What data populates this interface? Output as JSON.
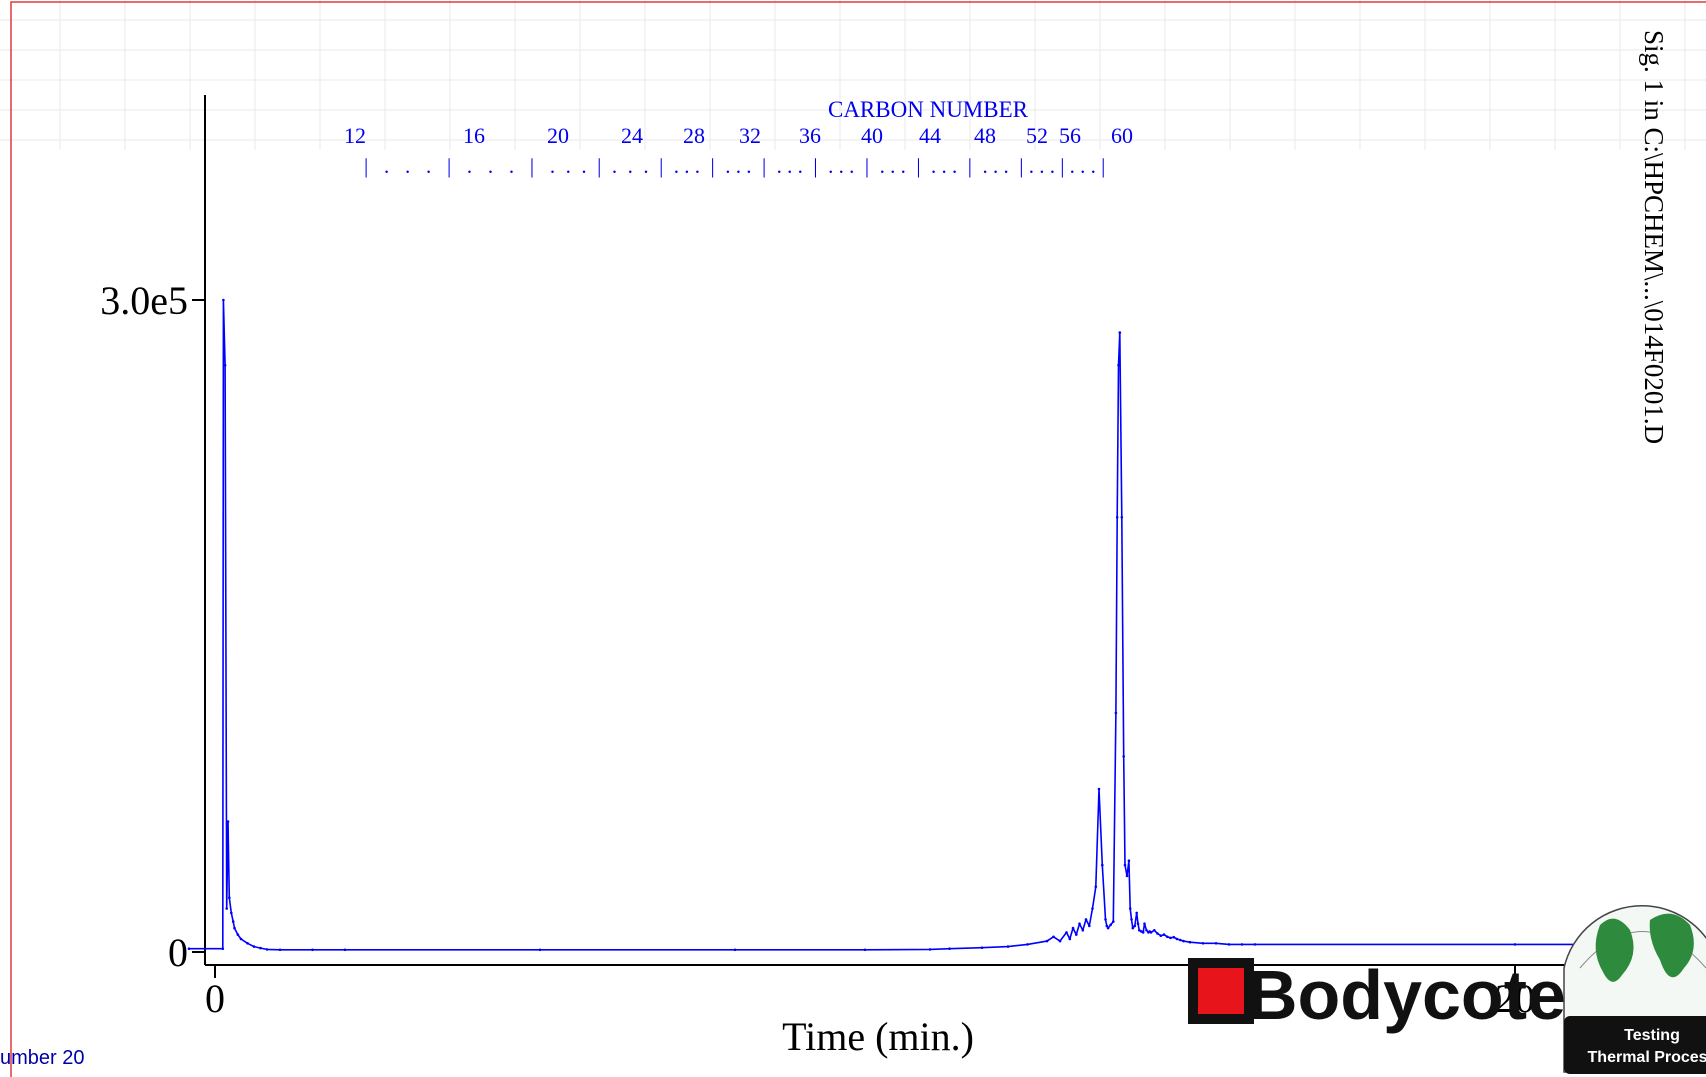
{
  "chart_data": {
    "type": "line",
    "xlabel": "Time (min.)",
    "ylabel": "",
    "x_ticks": [
      {
        "value": 0,
        "label": "0"
      },
      {
        "value": 20,
        "label": "20"
      }
    ],
    "y_ticks": [
      {
        "value": 0,
        "label": "0"
      },
      {
        "value": 300000,
        "label": "3.0e5"
      }
    ],
    "xlim": [
      0,
      22.5
    ],
    "ylim": [
      0,
      302000
    ],
    "series": [
      {
        "color": "#0000ff",
        "x": [
          -0.4,
          0.12,
          0.13,
          0.155,
          0.18,
          0.2,
          0.22,
          0.25,
          0.28,
          0.3,
          0.35,
          0.4,
          0.5,
          0.6,
          0.7,
          0.8,
          1.0,
          1.5,
          2.0,
          5.0,
          8.0,
          10.0,
          11.0,
          11.3,
          11.8,
          12.2,
          12.5,
          12.8,
          12.9,
          13.0,
          13.1,
          13.15,
          13.2,
          13.25,
          13.3,
          13.35,
          13.4,
          13.45,
          13.5,
          13.55,
          13.6,
          13.65,
          13.7,
          13.72,
          13.74,
          13.78,
          13.82,
          13.86,
          13.88,
          13.9,
          13.92,
          13.95,
          13.98,
          14.0,
          14.03,
          14.06,
          14.08,
          14.1,
          14.12,
          14.15,
          14.18,
          14.2,
          14.22,
          14.25,
          14.28,
          14.3,
          14.33,
          14.36,
          14.38,
          14.4,
          14.45,
          14.5,
          14.55,
          14.6,
          14.65,
          14.7,
          14.75,
          14.8,
          14.85,
          14.9,
          15.0,
          15.2,
          15.4,
          15.6,
          15.8,
          16.0,
          20.0,
          22.5
        ],
        "y": [
          1500,
          1500,
          300000,
          270000,
          20000,
          60000,
          25000,
          18000,
          14000,
          11000,
          8000,
          6000,
          4000,
          2500,
          1800,
          1200,
          1000,
          1000,
          1000,
          1000,
          1000,
          1000,
          1200,
          1500,
          2000,
          2500,
          3500,
          5000,
          7000,
          5000,
          9000,
          6000,
          11000,
          8000,
          13000,
          10000,
          15000,
          12000,
          20000,
          30000,
          75000,
          40000,
          15000,
          12000,
          11000,
          12500,
          14000,
          110000,
          200000,
          270000,
          285000,
          200000,
          90000,
          40000,
          35000,
          42000,
          20000,
          15000,
          11000,
          12000,
          18000,
          13000,
          10000,
          9500,
          9000,
          13000,
          10000,
          9000,
          9500,
          9000,
          10000,
          8500,
          7500,
          8000,
          7000,
          6500,
          6800,
          6000,
          5500,
          5000,
          4500,
          4000,
          4000,
          3500,
          3500,
          3500,
          3500,
          3500
        ]
      }
    ],
    "carbon_axis": {
      "title": "CARBON NUMBER",
      "labeled_numbers": [
        12,
        16,
        20,
        24,
        28,
        32,
        36,
        40,
        44,
        48,
        52,
        56,
        60
      ],
      "tick_marks": "|   .   .   .   |   .   .   .   |   .  .  .  |  .  .  .  |  . . .  |  . . .  |  . . .  |  . . .  |  . . .  |  . . .  |  . . .  | . . . | . . . |"
    }
  },
  "signal_label": "Sig. 1 in C:\\HPCHEM\\...\\014F0201.D",
  "footer_left": "umber 20",
  "logo": {
    "brand": "Bodycote",
    "line1": "Testing",
    "line2": "Thermal Process"
  }
}
